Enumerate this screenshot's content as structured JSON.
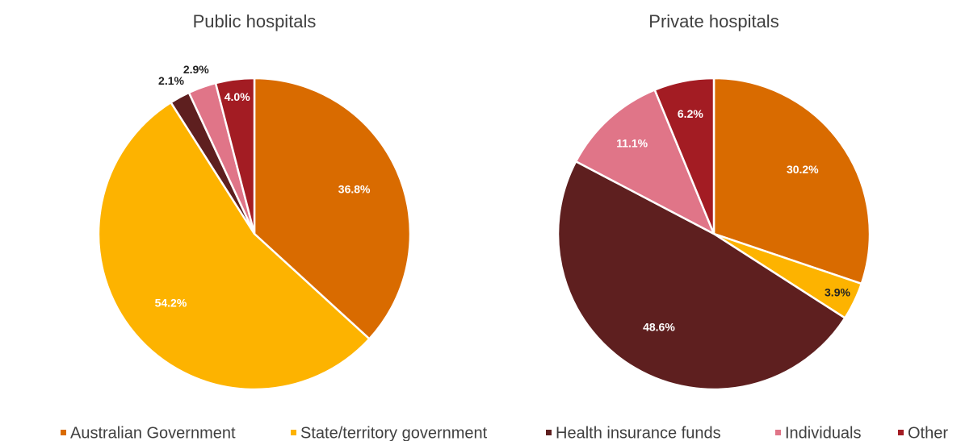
{
  "chart_data": [
    {
      "type": "pie",
      "title": "Public hospitals",
      "categories": [
        "Australian Government",
        "State/territory government",
        "Health insurance funds",
        "Individuals",
        "Other"
      ],
      "values": [
        36.8,
        54.2,
        2.1,
        2.9,
        4.0
      ],
      "value_labels": [
        "36.8%",
        "54.2%",
        "2.1%",
        "2.9%",
        "4.0%"
      ],
      "colors": [
        "#d96b00",
        "#fdb300",
        "#5e1f1f",
        "#e07588",
        "#a31c23"
      ]
    },
    {
      "type": "pie",
      "title": "Private hospitals",
      "categories": [
        "Australian Government",
        "State/territory government",
        "Health insurance funds",
        "Individuals",
        "Other"
      ],
      "values": [
        30.2,
        3.9,
        48.6,
        11.1,
        6.2
      ],
      "value_labels": [
        "30.2%",
        "3.9%",
        "48.6%",
        "11.1%",
        "6.2%"
      ],
      "colors": [
        "#d96b00",
        "#fdb300",
        "#5e1f1f",
        "#e07588",
        "#a31c23"
      ]
    }
  ]
}
